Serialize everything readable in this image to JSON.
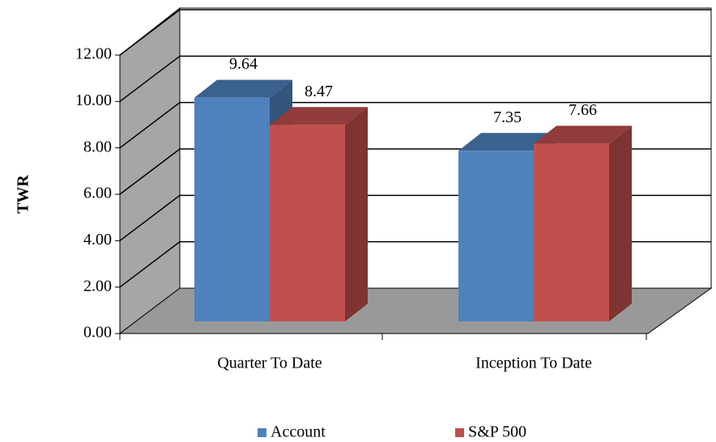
{
  "chart_data": {
    "type": "bar3d",
    "ylabel": "TWR",
    "categories": [
      "Quarter To Date",
      "Inception To Date"
    ],
    "series": [
      {
        "name": "Account",
        "color": "#4f81bd",
        "values": [
          9.64,
          7.35
        ]
      },
      {
        "name": "S&P 500",
        "color": "#c0504d",
        "values": [
          8.47,
          7.66
        ]
      }
    ],
    "ylim": [
      0,
      12
    ],
    "yticks": [
      {
        "value": 0,
        "label": "0.00"
      },
      {
        "value": 2,
        "label": "2.00"
      },
      {
        "value": 4,
        "label": "4.00"
      },
      {
        "value": 6,
        "label": "6.00"
      },
      {
        "value": 8,
        "label": "8.00"
      },
      {
        "value": 10,
        "label": "10.00"
      },
      {
        "value": 12,
        "label": "12.00"
      }
    ],
    "grid": true,
    "legend": "bottom"
  }
}
